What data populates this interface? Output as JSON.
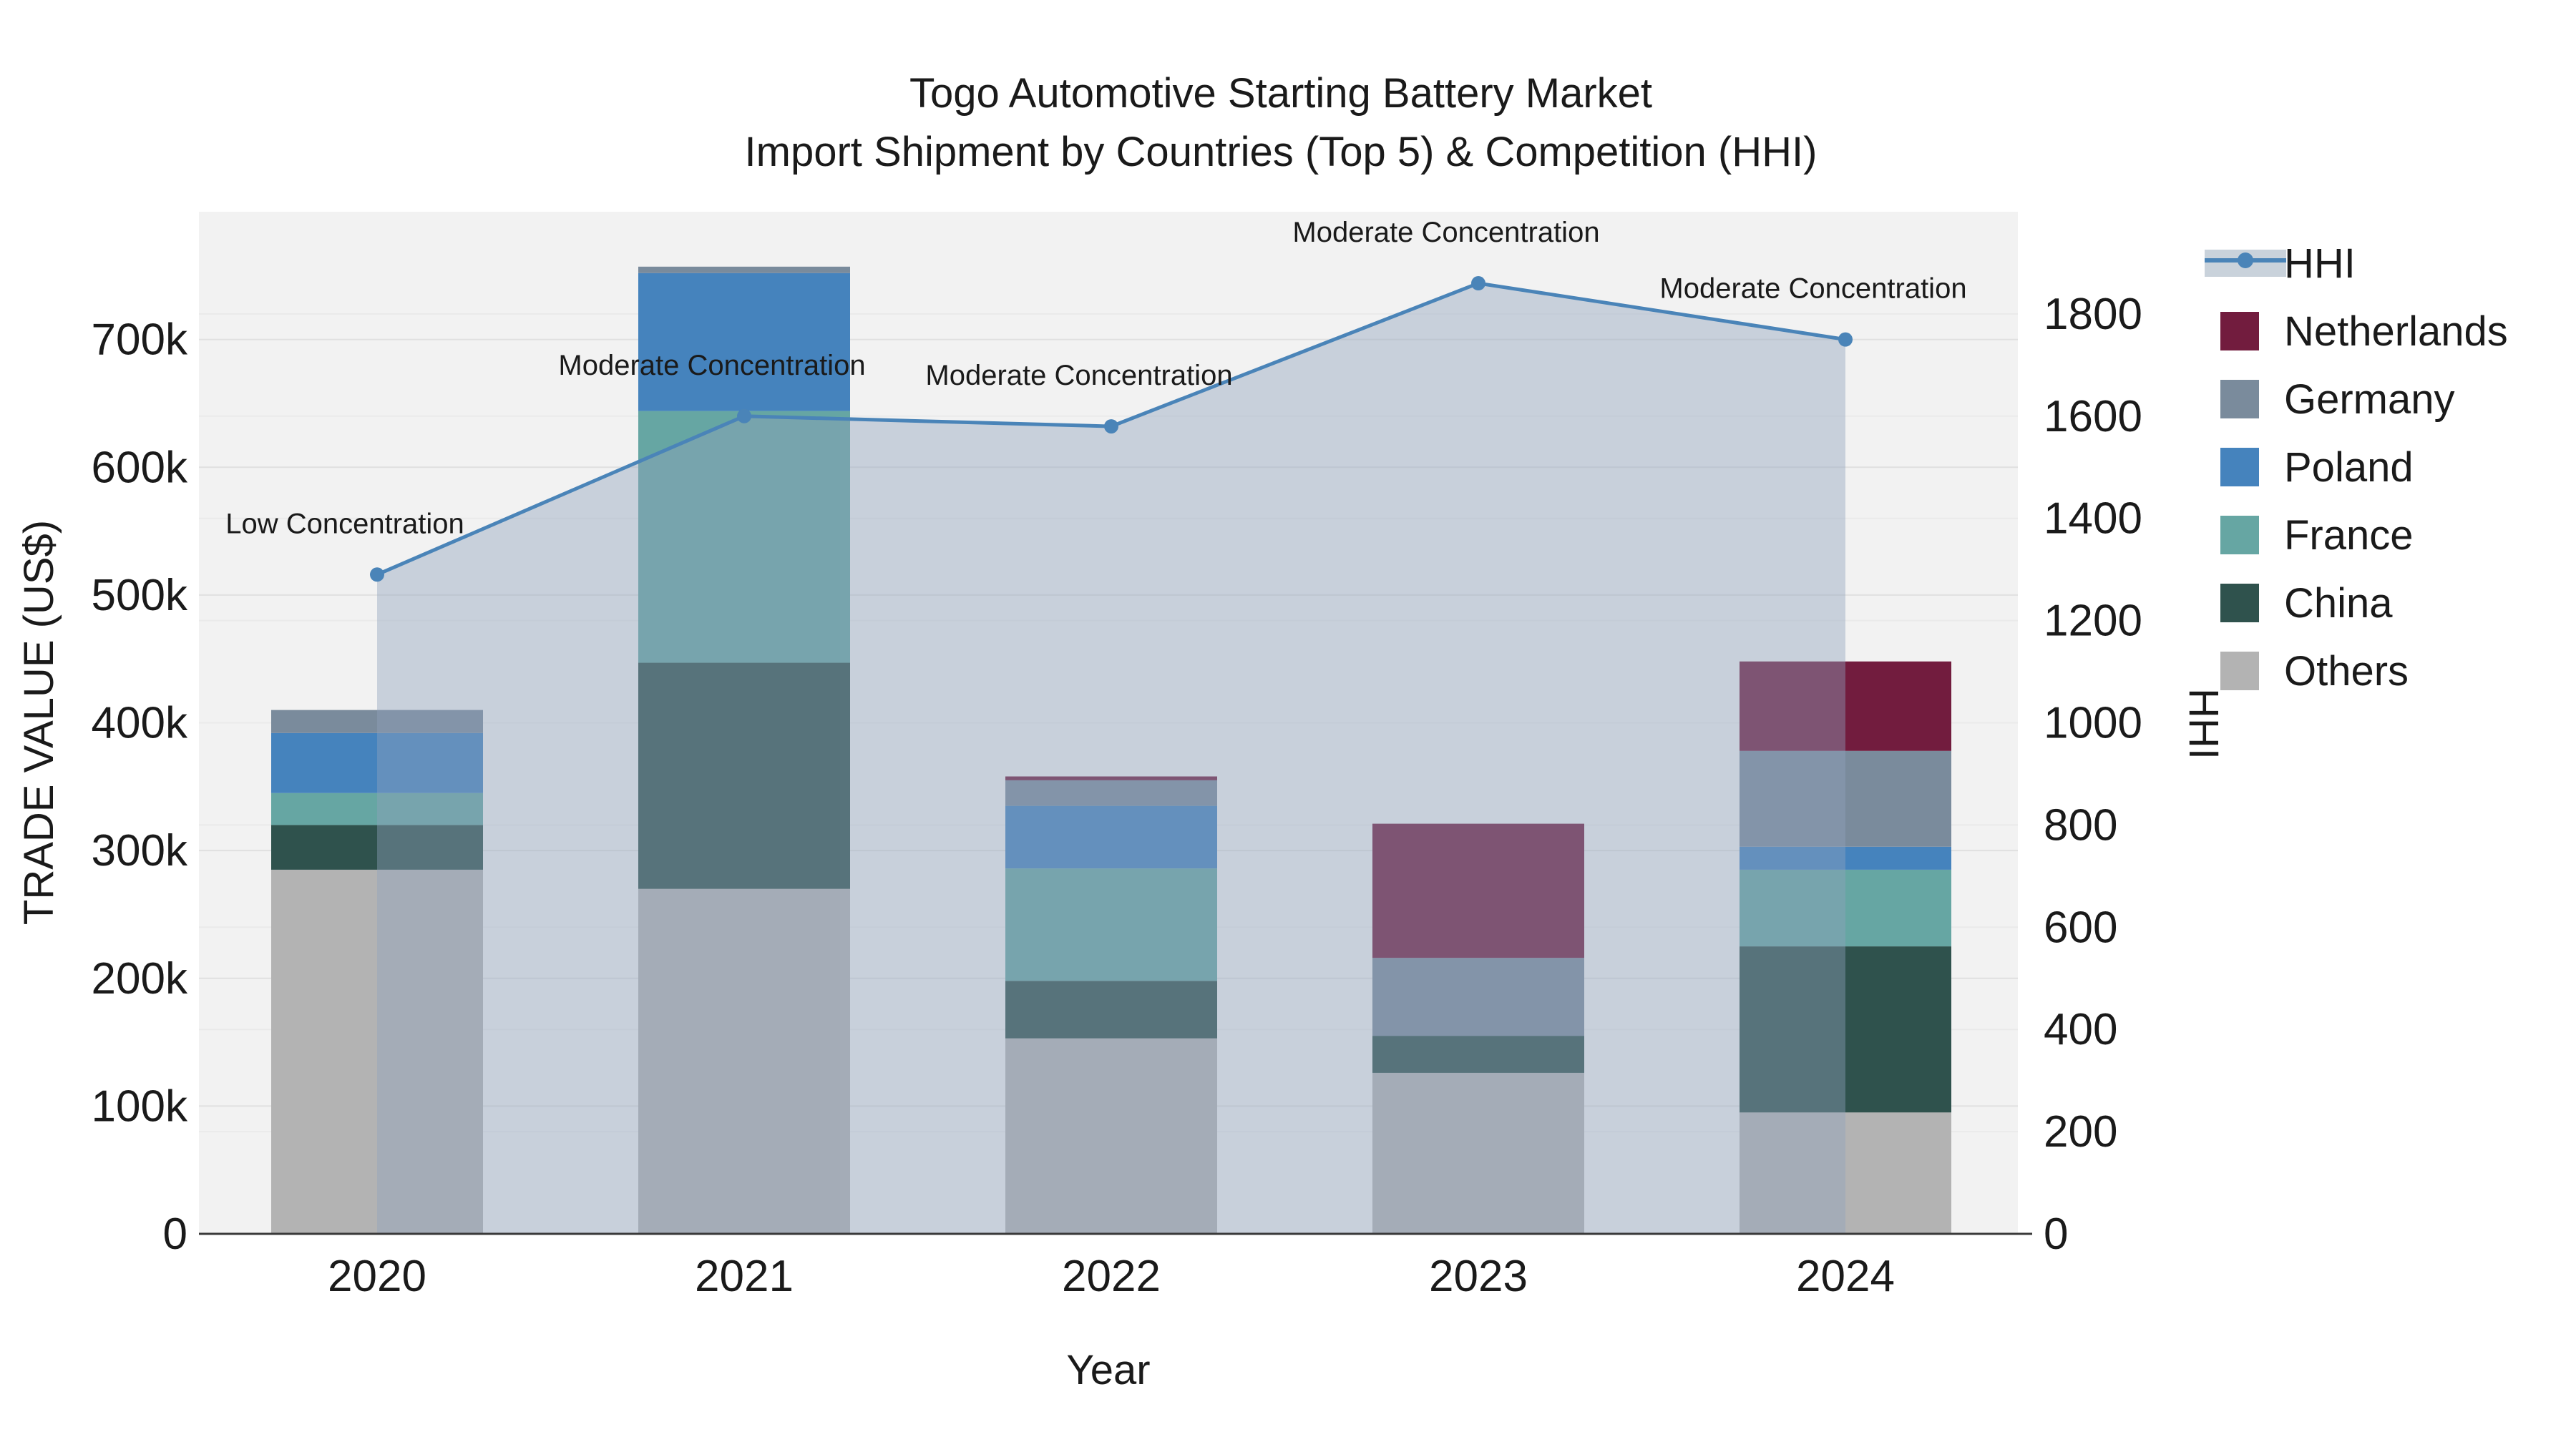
{
  "title": {
    "line1": "Togo Automotive Starting Battery Market",
    "line2": "Import Shipment by Countries (Top 5) & Competition (HHI)"
  },
  "axes": {
    "x_label": "Year",
    "y_left_label": "TRADE VALUE (US$)",
    "y_right_label": "HHI",
    "y_left_ticks": [
      "0",
      "100k",
      "200k",
      "300k",
      "400k",
      "500k",
      "600k",
      "700k"
    ],
    "y_right_ticks": [
      "0",
      "200",
      "400",
      "600",
      "800",
      "1000",
      "1200",
      "1400",
      "1600",
      "1800"
    ],
    "y_left_max_thousand": 800,
    "y_right_max": 2000
  },
  "colors": {
    "netherlands": "#721C3E",
    "germany": "#7A8B9C",
    "poland": "#4583BD",
    "france": "#66A6A3",
    "china": "#2F524D",
    "others": "#B3B3B3",
    "hhi_line": "#4A84B8",
    "hhi_fill": "#8FA2BC",
    "hhi_legend_band": "#C9D2DB",
    "plot_background": "#F2F2F2",
    "grid_left": "#E0E0E0",
    "grid_right": "#EAEAEA",
    "axis_line": "#3A3A3A",
    "text": "#1a1a1a"
  },
  "legend": [
    {
      "label": "HHI",
      "type": "line",
      "color": "#4A84B8"
    },
    {
      "label": "Netherlands",
      "type": "swatch",
      "color": "#721C3E"
    },
    {
      "label": "Germany",
      "type": "swatch",
      "color": "#7A8B9C"
    },
    {
      "label": "Poland",
      "type": "swatch",
      "color": "#4583BD"
    },
    {
      "label": "France",
      "type": "swatch",
      "color": "#66A6A3"
    },
    {
      "label": "China",
      "type": "swatch",
      "color": "#2F524D"
    },
    {
      "label": "Others",
      "type": "swatch",
      "color": "#B3B3B3"
    }
  ],
  "chart_data": {
    "type": "bar",
    "subtype": "stacked-bars-with-line-overlay",
    "categories": [
      "2020",
      "2021",
      "2022",
      "2023",
      "2024"
    ],
    "value_unit": "thousand US$ (trade value, left axis)",
    "series": [
      {
        "name": "Others",
        "color": "#B3B3B3",
        "values": [
          285,
          270,
          153,
          126,
          95
        ]
      },
      {
        "name": "China",
        "color": "#2F524D",
        "values": [
          35,
          177,
          45,
          29,
          130
        ]
      },
      {
        "name": "France",
        "color": "#66A6A3",
        "values": [
          25,
          197,
          88,
          0,
          60
        ]
      },
      {
        "name": "Poland",
        "color": "#4583BD",
        "values": [
          47,
          108,
          49,
          0,
          18
        ]
      },
      {
        "name": "Germany",
        "color": "#7A8B9C",
        "values": [
          18,
          5,
          20,
          61,
          75
        ]
      },
      {
        "name": "Netherlands",
        "color": "#721C3E",
        "values": [
          0,
          0,
          3,
          105,
          70
        ]
      }
    ],
    "bar_totals_thousand": [
      410,
      757,
      358,
      321,
      448
    ],
    "line_series": {
      "name": "HHI",
      "axis": "right",
      "color": "#4A84B8",
      "values": [
        1290,
        1600,
        1580,
        1860,
        1750
      ],
      "area_fill": true
    },
    "annotations": [
      {
        "category": "2020",
        "text": "Low Concentration"
      },
      {
        "category": "2021",
        "text": "Moderate Concentration"
      },
      {
        "category": "2022",
        "text": "Moderate Concentration"
      },
      {
        "category": "2023",
        "text": "Moderate Concentration"
      },
      {
        "category": "2024",
        "text": "Moderate Concentration"
      }
    ],
    "xlabel": "Year",
    "ylabel_left": "TRADE VALUE (US$)",
    "ylabel_right": "HHI",
    "ylim_left_thousand": [
      0,
      800
    ],
    "ylim_right": [
      0,
      2000
    ],
    "grid": true,
    "legend_position": "outside-right-top"
  }
}
